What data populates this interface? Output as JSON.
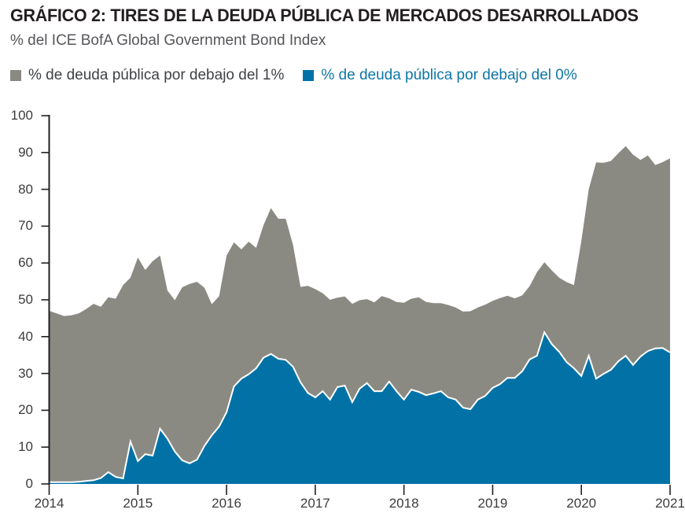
{
  "header": {
    "title": "GRÁFICO 2: TIRES DE LA DEUDA PÚBLICA DE MERCADOS DESARROLLADOS",
    "subtitle": "% del ICE BofA Global Government Bond Index"
  },
  "legend": [
    {
      "label": "% de deuda pública por debajo del 1%",
      "swatch_color": "#8a8a83",
      "text_color": "#3f4144"
    },
    {
      "label": "% de deuda pública por debajo del 0%",
      "swatch_color": "#0272a6",
      "text_color": "#0e76a8"
    }
  ],
  "colors": {
    "area_below_1pct": "#8a8a83",
    "area_below_0pct": "#0272a6",
    "line_on_blue": "#ffffff",
    "axis": "#231f20",
    "tick_text": "#3c3c3c",
    "background": "#ffffff"
  },
  "chart_data": {
    "type": "area",
    "title": "GRÁFICO 2: TIRES DE LA DEUDA PÚBLICA DE MERCADOS DESARROLLADOS",
    "subtitle": "% del ICE BofA Global Government Bond Index",
    "x_unit": "month",
    "x_start": "2014-01",
    "x_end": "2021-01",
    "x_tick_labels": [
      "2014",
      "2015",
      "2016",
      "2017",
      "2018",
      "2019",
      "2020",
      "2021"
    ],
    "ylim": [
      0,
      100
    ],
    "y_ticks": [
      0,
      10,
      20,
      30,
      40,
      50,
      60,
      70,
      80,
      90,
      100
    ],
    "grid": false,
    "legend_position": "top",
    "series": [
      {
        "name": "% de deuda pública por debajo del 1%",
        "color": "#8a8a83",
        "values": [
          47.0,
          46.3,
          45.6,
          45.8,
          46.3,
          47.5,
          48.9,
          48.1,
          50.7,
          50.3,
          54.0,
          56.0,
          61.5,
          58.1,
          60.5,
          62.0,
          52.5,
          49.9,
          53.4,
          54.3,
          54.9,
          53.3,
          48.8,
          51.0,
          62.0,
          65.6,
          63.7,
          65.8,
          64.1,
          70.3,
          74.9,
          72.0,
          72.0,
          64.8,
          53.5,
          53.8,
          52.9,
          51.8,
          50.0,
          50.6,
          50.9,
          48.9,
          49.9,
          50.2,
          49.3,
          51.0,
          50.4,
          49.4,
          49.2,
          50.3,
          50.7,
          49.4,
          49.1,
          49.1,
          48.6,
          47.9,
          46.8,
          46.9,
          47.9,
          48.7,
          49.7,
          50.5,
          51.1,
          50.4,
          51.2,
          53.7,
          57.5,
          60.2,
          58.0,
          56.0,
          54.8,
          54.0,
          66.0,
          80.0,
          87.3,
          87.2,
          87.7,
          89.8,
          91.7,
          89.4,
          88.0,
          89.2,
          86.6,
          87.4,
          88.4
        ]
      },
      {
        "name": "% de deuda pública por debajo del 0%",
        "color": "#0272a6",
        "line_color": "#ffffff",
        "values": [
          0.5,
          0.5,
          0.5,
          0.5,
          0.6,
          0.8,
          1.0,
          1.6,
          3.2,
          1.9,
          1.5,
          11.5,
          6.2,
          8.1,
          7.7,
          15.0,
          12.3,
          8.8,
          6.4,
          5.6,
          6.6,
          10.3,
          13.2,
          15.6,
          19.5,
          26.5,
          28.6,
          29.8,
          31.4,
          34.3,
          35.3,
          34.0,
          33.7,
          31.8,
          27.6,
          24.7,
          23.5,
          25.2,
          22.9,
          26.3,
          26.7,
          22.2,
          25.9,
          27.4,
          25.2,
          25.2,
          27.8,
          25.2,
          22.9,
          25.6,
          25.0,
          24.1,
          24.6,
          25.2,
          23.5,
          22.9,
          20.7,
          20.3,
          22.9,
          23.9,
          26.1,
          27.1,
          28.8,
          28.8,
          30.6,
          33.8,
          34.8,
          41.2,
          38.0,
          35.9,
          33.1,
          31.4,
          29.3,
          34.8,
          28.6,
          29.9,
          31.0,
          33.3,
          34.8,
          32.3,
          34.6,
          36.1,
          36.8,
          36.9,
          35.7
        ]
      }
    ]
  }
}
